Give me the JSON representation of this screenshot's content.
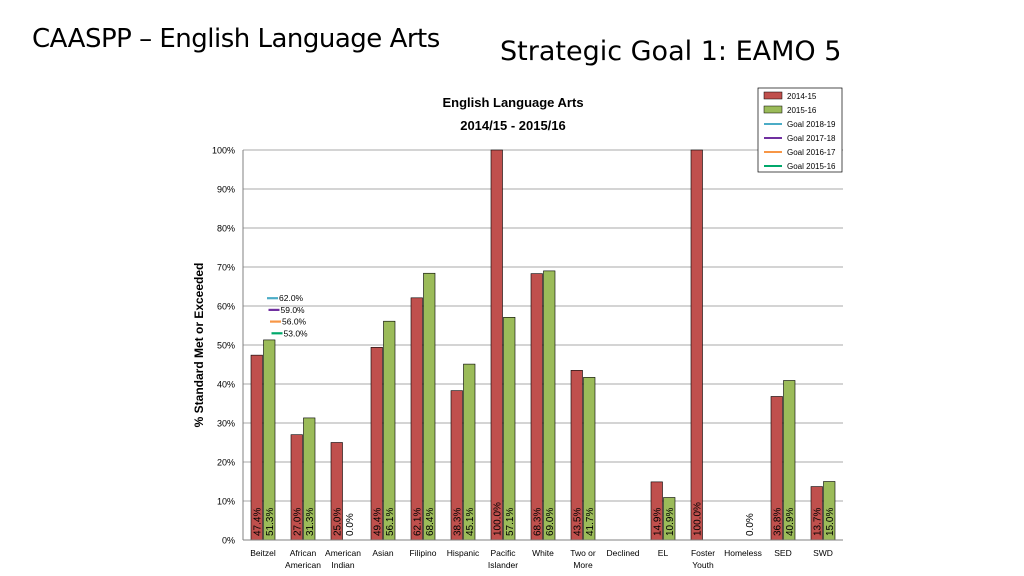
{
  "slide": {
    "title": "CAASPP – English Language Arts",
    "subtitle": "Strategic Goal 1: EAMO 5"
  },
  "chart_data": {
    "type": "bar",
    "title_line1": "English Language Arts",
    "title_line2": "2014/15 - 2015/16",
    "ylabel": "% Standard Met or Exceeded",
    "ylim": [
      0,
      100
    ],
    "yticks": [
      "0%",
      "10%",
      "20%",
      "30%",
      "40%",
      "50%",
      "60%",
      "70%",
      "80%",
      "90%",
      "100%"
    ],
    "grid": true,
    "legend_position": "top-right",
    "categories": [
      [
        "Beitzel"
      ],
      [
        "African",
        "American"
      ],
      [
        "American",
        "Indian"
      ],
      [
        "Asian"
      ],
      [
        "Filipino"
      ],
      [
        "Hispanic"
      ],
      [
        "Pacific",
        "Islander"
      ],
      [
        "White"
      ],
      [
        "Two or",
        "More"
      ],
      [
        "Declined"
      ],
      [
        "EL"
      ],
      [
        "Foster",
        "Youth"
      ],
      [
        "Homeless"
      ],
      [
        "SED"
      ],
      [
        "SWD"
      ]
    ],
    "series": [
      {
        "name": "2014-15",
        "color": "#c0504d",
        "values": [
          47.4,
          27.0,
          25.0,
          49.4,
          62.1,
          38.3,
          100.0,
          68.3,
          43.5,
          null,
          14.9,
          100.0,
          null,
          36.8,
          13.7
        ],
        "labels": [
          "47.4%",
          "27.0%",
          "25.0%",
          "49.4%",
          "62.1%",
          "38.3%",
          "100.0%",
          "68.3%",
          "43.5%",
          "",
          "14.9%",
          "100.0%",
          "",
          "36.8%",
          "13.7%"
        ]
      },
      {
        "name": "2015-16",
        "color": "#9bbb59",
        "values": [
          51.3,
          31.3,
          0.0,
          56.1,
          68.4,
          45.1,
          57.1,
          69.0,
          41.7,
          null,
          10.9,
          null,
          0.0,
          40.9,
          15.0
        ],
        "labels": [
          "51.3%",
          "31.3%",
          "0.0%",
          "56.1%",
          "68.4%",
          "45.1%",
          "57.1%",
          "69.0%",
          "41.7%",
          "",
          "10.9%",
          "",
          "0.0%",
          "40.9%",
          "15.0%"
        ]
      }
    ],
    "goals": [
      {
        "name": "Goal 2018-19",
        "color": "#4bacc6",
        "value": 62.0,
        "label": "62.0%"
      },
      {
        "name": "Goal 2017-18",
        "color": "#7030a0",
        "value": 59.0,
        "label": "59.0%"
      },
      {
        "name": "Goal 2016-17",
        "color": "#f79646",
        "value": 56.0,
        "label": "56.0%"
      },
      {
        "name": "Goal 2015-16",
        "color": "#00a86b",
        "value": 53.0,
        "label": "53.0%"
      }
    ]
  }
}
